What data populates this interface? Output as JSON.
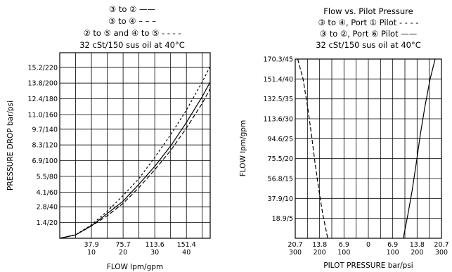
{
  "chart_data": [
    {
      "type": "line",
      "title_lines": [
        "③ to ② ——",
        "③ to ④ – – –",
        "② to ⑤ and ④ to ⑤ - - - -",
        "32 cSt/150 sus oil at 40°C"
      ],
      "xlabel": "FLOW lpm/gpm",
      "ylabel": "PRESSURE DROP bar/psi",
      "xlim": [
        0,
        47.5
      ],
      "ylim": [
        0,
        16.5
      ],
      "x_ticks": [
        {
          "value": 10,
          "label_top": "37.9",
          "label_bottom": "10"
        },
        {
          "value": 20,
          "label_top": "75.7",
          "label_bottom": "20"
        },
        {
          "value": 30,
          "label_top": "113.6",
          "label_bottom": "30"
        },
        {
          "value": 40,
          "label_top": "151.4",
          "label_bottom": "40"
        }
      ],
      "y_ticks": [
        {
          "value": 1.4,
          "label": "1.4/20"
        },
        {
          "value": 2.8,
          "label": "2.8/40"
        },
        {
          "value": 4.1,
          "label": "4.1/60"
        },
        {
          "value": 5.5,
          "label": "5.5/80"
        },
        {
          "value": 6.9,
          "label": "6.9/100"
        },
        {
          "value": 8.3,
          "label": "8.3/120"
        },
        {
          "value": 9.7,
          "label": "9.7/140"
        },
        {
          "value": 11.0,
          "label": "11.0/160"
        },
        {
          "value": 12.4,
          "label": "12.4/180"
        },
        {
          "value": 13.8,
          "label": "13.8/200"
        },
        {
          "value": 15.2,
          "label": "15.2/220"
        }
      ],
      "grid": true,
      "series": [
        {
          "dash": "solid",
          "points": [
            [
              0,
              0
            ],
            [
              5,
              0.3
            ],
            [
              10,
              1.1
            ],
            [
              15,
              2.2
            ],
            [
              20,
              3.3
            ],
            [
              25,
              4.8
            ],
            [
              30,
              6.4
            ],
            [
              35,
              8.2
            ],
            [
              40,
              10.3
            ],
            [
              45,
              12.6
            ],
            [
              47.5,
              13.9
            ]
          ]
        },
        {
          "dash": "dashed",
          "points": [
            [
              0,
              0
            ],
            [
              5,
              0.3
            ],
            [
              10,
              1.1
            ],
            [
              15,
              2.0
            ],
            [
              20,
              3.1
            ],
            [
              25,
              4.5
            ],
            [
              30,
              6.1
            ],
            [
              35,
              7.8
            ],
            [
              40,
              9.8
            ],
            [
              45,
              12.0
            ],
            [
              47.5,
              13.3
            ]
          ]
        },
        {
          "dash": "short-dashed",
          "points": [
            [
              0,
              0
            ],
            [
              5,
              0.3
            ],
            [
              10,
              1.2
            ],
            [
              15,
              2.4
            ],
            [
              20,
              3.8
            ],
            [
              25,
              5.3
            ],
            [
              30,
              7.2
            ],
            [
              35,
              9.2
            ],
            [
              40,
              11.4
            ],
            [
              45,
              13.9
            ],
            [
              47.5,
              15.3
            ]
          ]
        }
      ]
    },
    {
      "type": "line",
      "title_lines": [
        "Flow vs. Pilot Pressure",
        "③ to ④, Port ① Pilot - - - -",
        "③ to ②, Port ⑥ Pilot ——",
        "32 cSt/150 sus oil at 40°C"
      ],
      "xlabel": "PILOT PRESSURE bar/psi",
      "ylabel": "FLOW lpm/gpm",
      "xlim": [
        -20.7,
        20.7
      ],
      "ylim": [
        0,
        45
      ],
      "x_ticks": [
        {
          "value": -20.7,
          "label_top": "20.7",
          "label_bottom": "300"
        },
        {
          "value": -13.8,
          "label_top": "13.8",
          "label_bottom": "200"
        },
        {
          "value": -6.9,
          "label_top": "6.9",
          "label_bottom": "100"
        },
        {
          "value": 0,
          "label_top": "0",
          "label_bottom": ""
        },
        {
          "value": 6.9,
          "label_top": "6.9",
          "label_bottom": "100"
        },
        {
          "value": 13.8,
          "label_top": "13.8",
          "label_bottom": "200"
        },
        {
          "value": 20.7,
          "label_top": "20.7",
          "label_bottom": "300"
        }
      ],
      "y_ticks": [
        {
          "value": 5,
          "label": "18.9/5"
        },
        {
          "value": 10,
          "label": "37.9/10"
        },
        {
          "value": 15,
          "label": "56.8/15"
        },
        {
          "value": 20,
          "label": "75.5/20"
        },
        {
          "value": 25,
          "label": "94.6/25"
        },
        {
          "value": 30,
          "label": "113.6/30"
        },
        {
          "value": 35,
          "label": "132.5/35"
        },
        {
          "value": 40,
          "label": "151.4/40"
        },
        {
          "value": 45,
          "label": "170.3/45"
        }
      ],
      "grid": true,
      "series": [
        {
          "dash": "dashed",
          "points": [
            [
              -20.0,
              45
            ],
            [
              -18.5,
              40
            ],
            [
              -17.2,
              33
            ],
            [
              -16.1,
              26
            ],
            [
              -15.1,
              19
            ],
            [
              -14.0,
              12
            ],
            [
              -12.9,
              6
            ],
            [
              -11.5,
              0
            ]
          ]
        },
        {
          "dash": "solid",
          "points": [
            [
              9.9,
              0
            ],
            [
              11.2,
              6
            ],
            [
              12.4,
              12
            ],
            [
              13.6,
              19
            ],
            [
              14.7,
              26
            ],
            [
              16.0,
              33
            ],
            [
              17.5,
              40
            ],
            [
              18.9,
              45
            ]
          ]
        }
      ]
    }
  ]
}
